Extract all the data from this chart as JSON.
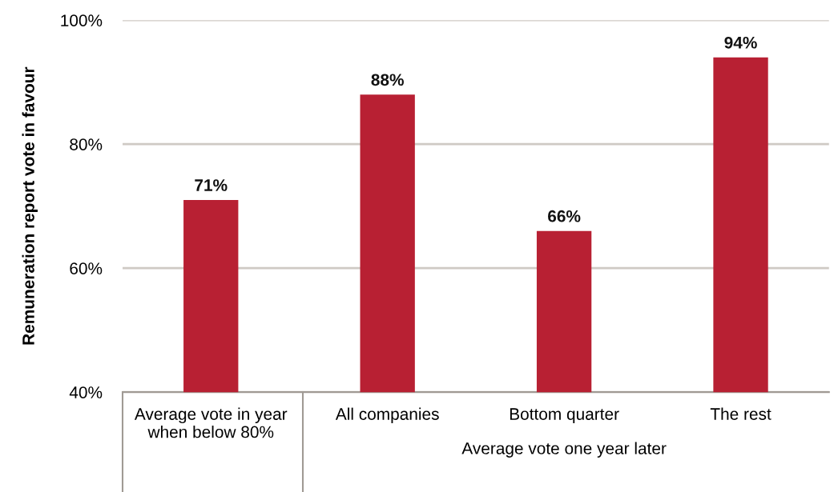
{
  "chart_data": {
    "type": "bar",
    "categories": [
      "Average vote in year\nwhen below 80%",
      "All companies",
      "Bottom quarter",
      "The rest"
    ],
    "values": [
      71,
      88,
      66,
      94
    ],
    "color": "#b82033",
    "ylabel": "Remuneration report vote in favour",
    "ylim": [
      40,
      100
    ],
    "yticks": [
      {
        "value": 40,
        "label": "40%"
      },
      {
        "value": 60,
        "label": "60%"
      },
      {
        "value": 80,
        "label": "80%"
      },
      {
        "value": 100,
        "label": "100%"
      }
    ],
    "grid": "y",
    "value_labels": [
      "71%",
      "88%",
      "66%",
      "94%"
    ],
    "annotations": [
      "Average vote one year later"
    ]
  }
}
